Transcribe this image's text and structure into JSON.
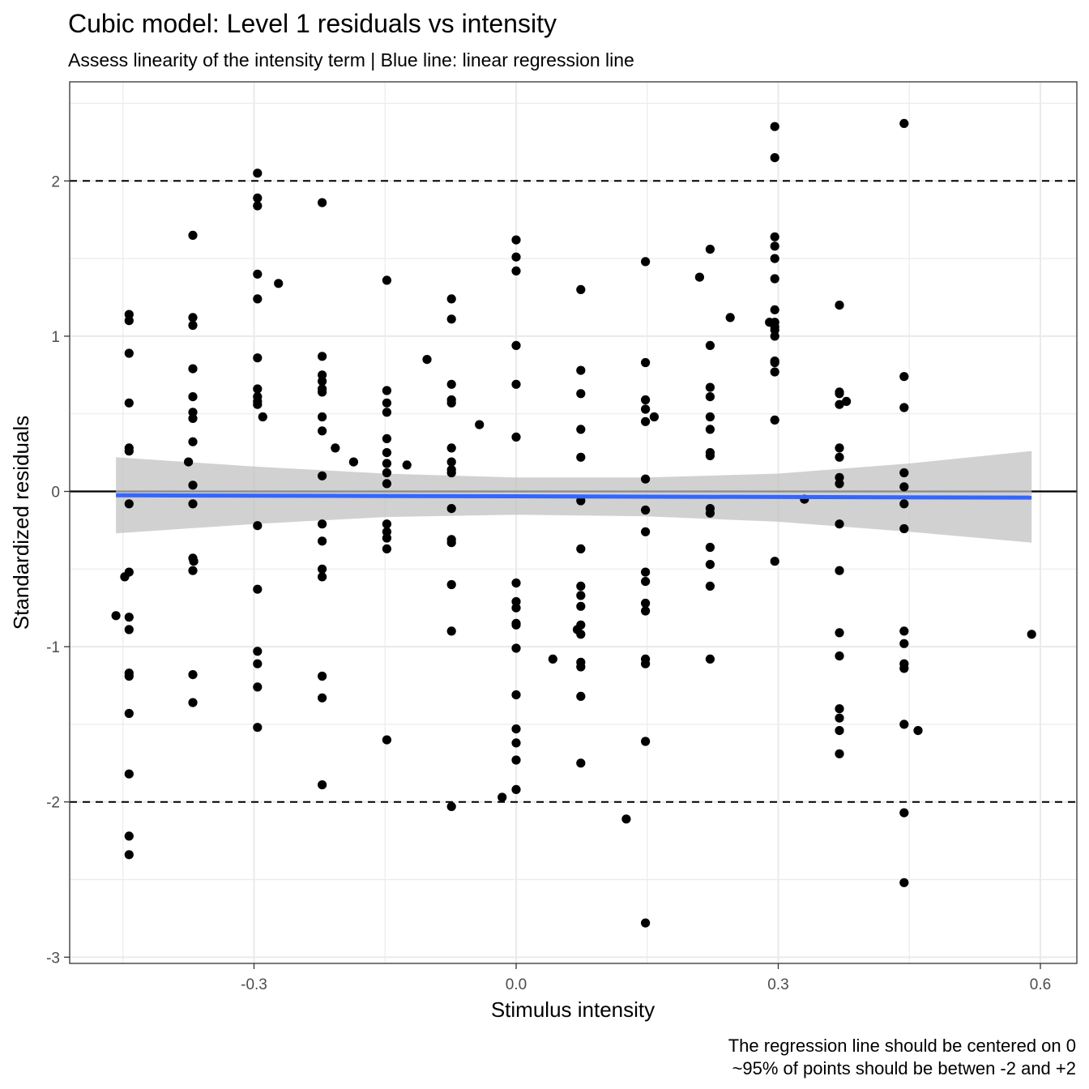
{
  "chart_data": {
    "type": "scatter",
    "title": "Cubic model: Level 1 residuals vs intensity",
    "subtitle": "Assess linearity of the intensity term | Blue line: linear regression line",
    "xlabel": "Stimulus intensity",
    "ylabel": "Standardized residuals",
    "caption_lines": [
      "The regression line should be centered on 0",
      "~95% of points should be betwen -2 and +2"
    ],
    "xlim": [
      -0.51,
      0.62
    ],
    "ylim": [
      -3.0,
      2.6
    ],
    "x_ticks": [
      {
        "value": -0.3,
        "label": "-0.3"
      },
      {
        "value": 0.0,
        "label": "0.0"
      },
      {
        "value": 0.3,
        "label": "0.3"
      },
      {
        "value": 0.6,
        "label": "0.6"
      }
    ],
    "y_ticks": [
      {
        "value": -3,
        "label": "-3"
      },
      {
        "value": -2,
        "label": "-2"
      },
      {
        "value": -1,
        "label": "-1"
      },
      {
        "value": 0,
        "label": "0"
      },
      {
        "value": 1,
        "label": "1"
      },
      {
        "value": 2,
        "label": "2"
      }
    ],
    "grid": true,
    "reference_lines": {
      "solid": [
        0
      ],
      "dashed": [
        -2,
        2
      ]
    },
    "colors": {
      "points": "#000000",
      "regression_line": "#3366FF",
      "confidence_band": "#bfbfbf",
      "grid": "#ebebeb",
      "panel_border": "#333333"
    },
    "regression": {
      "x": [
        -0.458,
        0.59
      ],
      "y": [
        -0.025,
        -0.04
      ],
      "band_upper": [
        [
          -0.458,
          0.22
        ],
        [
          -0.3,
          0.16
        ],
        [
          -0.15,
          0.115
        ],
        [
          0.0,
          0.09
        ],
        [
          0.15,
          0.09
        ],
        [
          0.3,
          0.115
        ],
        [
          0.45,
          0.18
        ],
        [
          0.59,
          0.26
        ]
      ],
      "band_lower": [
        [
          -0.458,
          -0.27
        ],
        [
          -0.3,
          -0.21
        ],
        [
          -0.15,
          -0.165
        ],
        [
          0.0,
          -0.15
        ],
        [
          0.15,
          -0.16
        ],
        [
          0.3,
          -0.195
        ],
        [
          0.45,
          -0.26
        ],
        [
          0.59,
          -0.33
        ]
      ]
    },
    "points": [
      [
        -0.458,
        -0.8
      ],
      [
        -0.448,
        -0.55
      ],
      [
        -0.443,
        1.14
      ],
      [
        -0.443,
        1.1
      ],
      [
        -0.443,
        0.89
      ],
      [
        -0.443,
        0.57
      ],
      [
        -0.443,
        0.28
      ],
      [
        -0.443,
        0.26
      ],
      [
        -0.443,
        -0.08
      ],
      [
        -0.443,
        -0.52
      ],
      [
        -0.443,
        -0.81
      ],
      [
        -0.443,
        -0.89
      ],
      [
        -0.443,
        -1.17
      ],
      [
        -0.443,
        -1.19
      ],
      [
        -0.443,
        -1.43
      ],
      [
        -0.443,
        -1.82
      ],
      [
        -0.443,
        -2.22
      ],
      [
        -0.443,
        -2.34
      ],
      [
        -0.375,
        0.19
      ],
      [
        -0.369,
        -0.45
      ],
      [
        -0.37,
        1.65
      ],
      [
        -0.37,
        1.12
      ],
      [
        -0.37,
        1.07
      ],
      [
        -0.37,
        0.79
      ],
      [
        -0.37,
        0.61
      ],
      [
        -0.37,
        0.51
      ],
      [
        -0.37,
        0.47
      ],
      [
        -0.37,
        0.32
      ],
      [
        -0.37,
        0.04
      ],
      [
        -0.37,
        -0.08
      ],
      [
        -0.37,
        -0.43
      ],
      [
        -0.37,
        -0.51
      ],
      [
        -0.37,
        -1.18
      ],
      [
        -0.37,
        -1.36
      ],
      [
        -0.296,
        2.05
      ],
      [
        -0.296,
        1.89
      ],
      [
        -0.296,
        1.84
      ],
      [
        -0.296,
        1.4
      ],
      [
        -0.296,
        1.24
      ],
      [
        -0.296,
        0.86
      ],
      [
        -0.296,
        0.66
      ],
      [
        -0.296,
        0.61
      ],
      [
        -0.296,
        0.58
      ],
      [
        -0.296,
        0.56
      ],
      [
        -0.296,
        -0.22
      ],
      [
        -0.296,
        -0.63
      ],
      [
        -0.296,
        -1.03
      ],
      [
        -0.296,
        -1.11
      ],
      [
        -0.296,
        -1.26
      ],
      [
        -0.296,
        -1.52
      ],
      [
        -0.29,
        0.48
      ],
      [
        -0.272,
        1.34
      ],
      [
        -0.222,
        1.86
      ],
      [
        -0.222,
        0.87
      ],
      [
        -0.222,
        0.75
      ],
      [
        -0.222,
        0.71
      ],
      [
        -0.222,
        0.66
      ],
      [
        -0.222,
        0.64
      ],
      [
        -0.222,
        0.48
      ],
      [
        -0.222,
        0.39
      ],
      [
        -0.222,
        0.1
      ],
      [
        -0.222,
        -0.21
      ],
      [
        -0.222,
        -0.32
      ],
      [
        -0.222,
        -0.5
      ],
      [
        -0.222,
        -0.55
      ],
      [
        -0.222,
        -1.19
      ],
      [
        -0.222,
        -1.33
      ],
      [
        -0.222,
        -1.89
      ],
      [
        -0.207,
        0.28
      ],
      [
        -0.186,
        0.19
      ],
      [
        -0.148,
        1.36
      ],
      [
        -0.148,
        0.65
      ],
      [
        -0.148,
        0.57
      ],
      [
        -0.148,
        0.51
      ],
      [
        -0.148,
        0.34
      ],
      [
        -0.148,
        0.25
      ],
      [
        -0.148,
        0.18
      ],
      [
        -0.148,
        0.12
      ],
      [
        -0.148,
        0.05
      ],
      [
        -0.148,
        -0.21
      ],
      [
        -0.148,
        -0.26
      ],
      [
        -0.148,
        -0.3
      ],
      [
        -0.148,
        -0.37
      ],
      [
        -0.148,
        -1.6
      ],
      [
        -0.125,
        0.17
      ],
      [
        -0.102,
        0.85
      ],
      [
        -0.074,
        1.24
      ],
      [
        -0.074,
        1.11
      ],
      [
        -0.074,
        0.69
      ],
      [
        -0.074,
        0.59
      ],
      [
        -0.074,
        0.57
      ],
      [
        -0.074,
        0.28
      ],
      [
        -0.074,
        0.19
      ],
      [
        -0.074,
        0.14
      ],
      [
        -0.074,
        0.12
      ],
      [
        -0.074,
        -0.11
      ],
      [
        -0.074,
        -0.31
      ],
      [
        -0.074,
        -0.33
      ],
      [
        -0.074,
        -0.6
      ],
      [
        -0.074,
        -0.9
      ],
      [
        -0.074,
        -2.03
      ],
      [
        -0.042,
        0.43
      ],
      [
        -0.016,
        -1.97
      ],
      [
        0.0,
        1.62
      ],
      [
        0.0,
        1.51
      ],
      [
        0.0,
        1.42
      ],
      [
        0.0,
        0.94
      ],
      [
        0.0,
        0.69
      ],
      [
        0.0,
        0.35
      ],
      [
        0.0,
        -0.59
      ],
      [
        0.0,
        -0.71
      ],
      [
        0.0,
        -0.75
      ],
      [
        0.0,
        -0.85
      ],
      [
        0.0,
        -0.86
      ],
      [
        0.0,
        -1.01
      ],
      [
        0.0,
        -1.31
      ],
      [
        0.0,
        -1.53
      ],
      [
        0.0,
        -1.62
      ],
      [
        0.0,
        -1.73
      ],
      [
        0.0,
        -1.92
      ],
      [
        0.042,
        -1.08
      ],
      [
        0.074,
        1.3
      ],
      [
        0.074,
        0.78
      ],
      [
        0.074,
        0.63
      ],
      [
        0.074,
        0.4
      ],
      [
        0.074,
        0.22
      ],
      [
        0.074,
        -0.06
      ],
      [
        0.074,
        -0.37
      ],
      [
        0.074,
        -0.61
      ],
      [
        0.074,
        -0.67
      ],
      [
        0.074,
        -0.74
      ],
      [
        0.074,
        -0.86
      ],
      [
        0.074,
        -0.92
      ],
      [
        0.074,
        -1.1
      ],
      [
        0.074,
        -1.13
      ],
      [
        0.074,
        -1.32
      ],
      [
        0.074,
        -1.75
      ],
      [
        0.07,
        -0.89
      ],
      [
        0.126,
        -2.11
      ],
      [
        0.148,
        1.48
      ],
      [
        0.148,
        0.83
      ],
      [
        0.148,
        0.59
      ],
      [
        0.148,
        0.53
      ],
      [
        0.148,
        0.45
      ],
      [
        0.148,
        0.08
      ],
      [
        0.148,
        -0.12
      ],
      [
        0.148,
        -0.26
      ],
      [
        0.148,
        -0.52
      ],
      [
        0.148,
        -0.58
      ],
      [
        0.148,
        -0.72
      ],
      [
        0.148,
        -0.77
      ],
      [
        0.148,
        -1.08
      ],
      [
        0.148,
        -1.11
      ],
      [
        0.148,
        -1.61
      ],
      [
        0.148,
        -2.78
      ],
      [
        0.158,
        0.48
      ],
      [
        0.21,
        1.38
      ],
      [
        0.222,
        1.56
      ],
      [
        0.222,
        0.94
      ],
      [
        0.222,
        0.67
      ],
      [
        0.222,
        0.61
      ],
      [
        0.222,
        0.48
      ],
      [
        0.222,
        0.4
      ],
      [
        0.222,
        0.25
      ],
      [
        0.222,
        0.23
      ],
      [
        0.222,
        -0.11
      ],
      [
        0.222,
        -0.14
      ],
      [
        0.222,
        -0.36
      ],
      [
        0.222,
        -0.47
      ],
      [
        0.222,
        -0.61
      ],
      [
        0.222,
        -1.08
      ],
      [
        0.245,
        1.12
      ],
      [
        0.296,
        2.35
      ],
      [
        0.296,
        2.15
      ],
      [
        0.296,
        1.64
      ],
      [
        0.296,
        1.58
      ],
      [
        0.296,
        1.5
      ],
      [
        0.296,
        1.37
      ],
      [
        0.296,
        1.17
      ],
      [
        0.296,
        1.09
      ],
      [
        0.296,
        1.06
      ],
      [
        0.296,
        1.04
      ],
      [
        0.296,
        1.0
      ],
      [
        0.296,
        0.84
      ],
      [
        0.296,
        0.83
      ],
      [
        0.296,
        0.77
      ],
      [
        0.296,
        0.46
      ],
      [
        0.296,
        -0.45
      ],
      [
        0.29,
        1.09
      ],
      [
        0.33,
        -0.05
      ],
      [
        0.37,
        1.2
      ],
      [
        0.37,
        0.64
      ],
      [
        0.37,
        0.63
      ],
      [
        0.37,
        0.56
      ],
      [
        0.37,
        0.28
      ],
      [
        0.37,
        0.22
      ],
      [
        0.37,
        0.09
      ],
      [
        0.37,
        0.05
      ],
      [
        0.37,
        -0.21
      ],
      [
        0.37,
        -0.51
      ],
      [
        0.37,
        -0.91
      ],
      [
        0.37,
        -1.06
      ],
      [
        0.37,
        -1.4
      ],
      [
        0.37,
        -1.46
      ],
      [
        0.37,
        -1.54
      ],
      [
        0.37,
        -1.69
      ],
      [
        0.378,
        0.58
      ],
      [
        0.444,
        2.37
      ],
      [
        0.444,
        0.74
      ],
      [
        0.444,
        0.54
      ],
      [
        0.444,
        0.12
      ],
      [
        0.444,
        0.03
      ],
      [
        0.444,
        -0.08
      ],
      [
        0.444,
        -0.24
      ],
      [
        0.444,
        -0.9
      ],
      [
        0.444,
        -0.98
      ],
      [
        0.444,
        -1.11
      ],
      [
        0.444,
        -1.14
      ],
      [
        0.444,
        -1.5
      ],
      [
        0.444,
        -2.07
      ],
      [
        0.444,
        -2.52
      ],
      [
        0.46,
        -1.54
      ],
      [
        0.59,
        -0.92
      ]
    ]
  }
}
